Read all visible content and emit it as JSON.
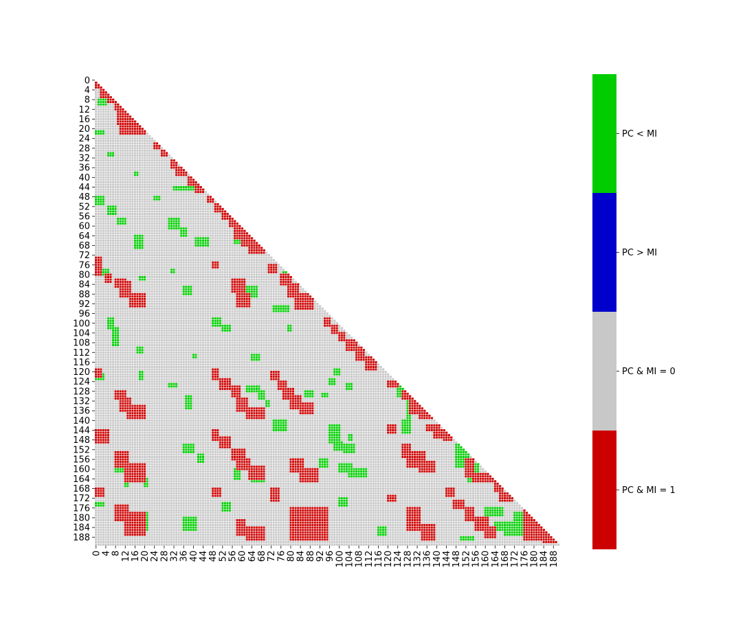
{
  "chart_data": {
    "type": "heatmap",
    "matrix_size": 192,
    "mask": "upper-triangle",
    "title": "",
    "xlabel": "",
    "ylabel": "",
    "tick_step": 4,
    "x_tick_labels": [
      "0",
      "4",
      "8",
      "12",
      "16",
      "20",
      "24",
      "28",
      "32",
      "36",
      "40",
      "44",
      "48",
      "52",
      "56",
      "60",
      "64",
      "68",
      "72",
      "76",
      "80",
      "84",
      "88",
      "92",
      "96",
      "100",
      "104",
      "108",
      "112",
      "116",
      "120",
      "124",
      "128",
      "132",
      "136",
      "140",
      "144",
      "148",
      "152",
      "156",
      "160",
      "164",
      "168",
      "172",
      "176",
      "180",
      "184",
      "188"
    ],
    "y_tick_labels": [
      "0",
      "4",
      "8",
      "12",
      "16",
      "20",
      "24",
      "28",
      "32",
      "36",
      "40",
      "44",
      "48",
      "52",
      "56",
      "60",
      "64",
      "68",
      "72",
      "76",
      "80",
      "84",
      "88",
      "92",
      "96",
      "100",
      "104",
      "108",
      "112",
      "116",
      "120",
      "124",
      "128",
      "132",
      "136",
      "140",
      "144",
      "148",
      "152",
      "156",
      "160",
      "164",
      "168",
      "172",
      "176",
      "180",
      "184",
      "188"
    ],
    "categories": [
      {
        "code": 0,
        "label": "PC & MI = 1",
        "color": "#cc0000"
      },
      {
        "code": 1,
        "label": "PC & MI = 0",
        "color": "#c8c8c8"
      },
      {
        "code": 2,
        "label": "PC > MI",
        "color": "#0000cc"
      },
      {
        "code": 3,
        "label": "PC < MI",
        "color": "#00cc00"
      }
    ],
    "grid_line_color": "#ffffff",
    "default_code": 1,
    "red_blocks": [
      [
        1,
        4,
        0,
        3
      ],
      [
        4,
        8,
        2,
        6
      ],
      [
        7,
        10,
        5,
        9
      ],
      [
        10,
        13,
        8,
        12
      ],
      [
        13,
        19,
        9,
        15
      ],
      [
        16,
        23,
        10,
        18
      ],
      [
        19,
        23,
        14,
        21
      ],
      [
        26,
        29,
        24,
        27
      ],
      [
        29,
        32,
        27,
        30
      ],
      [
        33,
        37,
        31,
        34
      ],
      [
        36,
        40,
        33,
        38
      ],
      [
        40,
        44,
        38,
        42
      ],
      [
        43,
        47,
        41,
        45
      ],
      [
        48,
        51,
        46,
        49
      ],
      [
        51,
        55,
        49,
        53
      ],
      [
        54,
        58,
        52,
        56
      ],
      [
        57,
        61,
        55,
        59
      ],
      [
        60,
        66,
        57,
        63
      ],
      [
        63,
        69,
        60,
        67
      ],
      [
        66,
        72,
        63,
        70
      ],
      [
        73,
        77,
        0,
        3
      ],
      [
        77,
        81,
        0,
        3
      ],
      [
        75,
        78,
        48,
        51
      ],
      [
        80,
        84,
        4,
        7
      ],
      [
        82,
        86,
        8,
        13
      ],
      [
        83,
        90,
        10,
        15
      ],
      [
        88,
        94,
        14,
        21
      ],
      [
        82,
        88,
        56,
        62
      ],
      [
        88,
        94,
        58,
        64
      ],
      [
        76,
        80,
        71,
        75
      ],
      [
        80,
        85,
        76,
        81
      ],
      [
        84,
        90,
        79,
        84
      ],
      [
        88,
        95,
        82,
        90
      ],
      [
        98,
        102,
        94,
        97
      ],
      [
        101,
        105,
        97,
        100
      ],
      [
        104,
        108,
        100,
        103
      ],
      [
        107,
        112,
        103,
        108
      ],
      [
        110,
        116,
        107,
        111
      ],
      [
        114,
        120,
        111,
        116
      ],
      [
        119,
        123,
        0,
        3
      ],
      [
        119,
        124,
        48,
        51
      ],
      [
        123,
        128,
        51,
        56
      ],
      [
        126,
        131,
        56,
        60
      ],
      [
        120,
        124,
        72,
        76
      ],
      [
        124,
        128,
        75,
        79
      ],
      [
        127,
        132,
        77,
        82
      ],
      [
        130,
        136,
        80,
        85
      ],
      [
        133,
        138,
        84,
        90
      ],
      [
        128,
        132,
        8,
        13
      ],
      [
        131,
        137,
        10,
        15
      ],
      [
        134,
        140,
        13,
        21
      ],
      [
        131,
        137,
        58,
        63
      ],
      [
        135,
        140,
        62,
        70
      ],
      [
        124,
        127,
        120,
        125
      ],
      [
        128,
        132,
        126,
        130
      ],
      [
        131,
        138,
        129,
        135
      ],
      [
        136,
        140,
        133,
        140
      ],
      [
        142,
        145,
        136,
        142
      ],
      [
        144,
        148,
        139,
        145
      ],
      [
        146,
        149,
        143,
        147
      ],
      [
        144,
        150,
        0,
        6
      ],
      [
        144,
        149,
        48,
        51
      ],
      [
        147,
        152,
        51,
        56
      ],
      [
        152,
        157,
        56,
        62
      ],
      [
        156,
        161,
        58,
        64
      ],
      [
        159,
        165,
        63,
        70
      ],
      [
        153,
        160,
        8,
        14
      ],
      [
        158,
        166,
        12,
        21
      ],
      [
        156,
        162,
        80,
        86
      ],
      [
        160,
        166,
        84,
        92
      ],
      [
        142,
        146,
        120,
        124
      ],
      [
        150,
        156,
        126,
        130
      ],
      [
        153,
        160,
        128,
        136
      ],
      [
        157,
        162,
        133,
        140
      ],
      [
        156,
        164,
        152,
        156
      ],
      [
        162,
        166,
        155,
        166
      ],
      [
        166,
        170,
        164,
        168
      ],
      [
        170,
        174,
        166,
        172
      ],
      [
        168,
        172,
        0,
        4
      ],
      [
        168,
        172,
        48,
        52
      ],
      [
        168,
        174,
        72,
        76
      ],
      [
        171,
        174,
        120,
        124
      ],
      [
        168,
        172,
        144,
        148
      ],
      [
        173,
        177,
        147,
        152
      ],
      [
        176,
        182,
        152,
        156
      ],
      [
        175,
        182,
        8,
        14
      ],
      [
        178,
        188,
        12,
        21
      ],
      [
        181,
        188,
        58,
        62
      ],
      [
        184,
        190,
        62,
        70
      ],
      [
        176,
        190,
        80,
        96
      ],
      [
        176,
        186,
        128,
        134
      ],
      [
        183,
        190,
        134,
        140
      ],
      [
        180,
        186,
        156,
        162
      ],
      [
        184,
        189,
        160,
        165
      ],
      [
        176,
        190,
        176,
        184
      ],
      [
        180,
        191,
        184,
        191
      ]
    ],
    "green_blocks": [
      [
        8,
        11,
        1,
        5
      ],
      [
        21,
        23,
        0,
        4
      ],
      [
        12,
        14,
        14,
        20
      ],
      [
        30,
        32,
        5,
        8
      ],
      [
        38,
        40,
        16,
        18
      ],
      [
        44,
        46,
        32,
        42
      ],
      [
        48,
        52,
        0,
        4
      ],
      [
        48,
        50,
        24,
        27
      ],
      [
        52,
        56,
        5,
        9
      ],
      [
        57,
        60,
        9,
        13
      ],
      [
        57,
        62,
        30,
        35
      ],
      [
        61,
        65,
        35,
        38
      ],
      [
        65,
        69,
        41,
        47
      ],
      [
        62,
        68,
        57,
        63
      ],
      [
        64,
        70,
        16,
        20
      ],
      [
        78,
        81,
        0,
        6
      ],
      [
        78,
        80,
        31,
        33
      ],
      [
        85,
        89,
        36,
        40
      ],
      [
        81,
        83,
        18,
        21
      ],
      [
        85,
        90,
        61,
        67
      ],
      [
        93,
        96,
        73,
        80
      ],
      [
        79,
        82,
        77,
        81
      ],
      [
        98,
        103,
        5,
        8
      ],
      [
        98,
        102,
        48,
        52
      ],
      [
        101,
        104,
        52,
        56
      ],
      [
        101,
        104,
        79,
        81
      ],
      [
        102,
        110,
        7,
        10
      ],
      [
        110,
        113,
        17,
        20
      ],
      [
        113,
        115,
        40,
        42
      ],
      [
        113,
        116,
        64,
        68
      ],
      [
        119,
        122,
        98,
        101
      ],
      [
        121,
        124,
        0,
        4
      ],
      [
        123,
        126,
        96,
        99
      ],
      [
        125,
        128,
        103,
        106
      ],
      [
        120,
        124,
        18,
        20
      ],
      [
        125,
        127,
        30,
        34
      ],
      [
        126,
        129,
        62,
        68
      ],
      [
        128,
        132,
        67,
        70
      ],
      [
        132,
        135,
        70,
        72
      ],
      [
        128,
        131,
        86,
        90
      ],
      [
        129,
        131,
        93,
        96
      ],
      [
        126,
        131,
        124,
        130
      ],
      [
        130,
        140,
        128,
        130
      ],
      [
        130,
        136,
        37,
        40
      ],
      [
        140,
        145,
        73,
        79
      ],
      [
        140,
        146,
        126,
        130
      ],
      [
        142,
        150,
        96,
        101
      ],
      [
        149,
        153,
        98,
        102
      ],
      [
        150,
        154,
        102,
        107
      ],
      [
        146,
        149,
        104,
        106
      ],
      [
        150,
        154,
        36,
        41
      ],
      [
        154,
        158,
        42,
        45
      ],
      [
        160,
        165,
        57,
        60
      ],
      [
        162,
        166,
        64,
        70
      ],
      [
        156,
        160,
        92,
        96
      ],
      [
        158,
        162,
        100,
        106
      ],
      [
        160,
        164,
        104,
        112
      ],
      [
        156,
        162,
        8,
        12
      ],
      [
        162,
        168,
        12,
        14
      ],
      [
        164,
        168,
        20,
        22
      ],
      [
        150,
        160,
        148,
        154
      ],
      [
        158,
        166,
        153,
        158
      ],
      [
        160,
        164,
        166,
        170
      ],
      [
        174,
        176,
        0,
        4
      ],
      [
        172,
        176,
        100,
        104
      ],
      [
        174,
        178,
        52,
        56
      ],
      [
        178,
        186,
        18,
        22
      ],
      [
        180,
        186,
        36,
        42
      ],
      [
        184,
        188,
        116,
        120
      ],
      [
        176,
        180,
        160,
        168
      ],
      [
        182,
        186,
        164,
        170
      ],
      [
        178,
        182,
        172,
        176
      ],
      [
        182,
        188,
        168,
        176
      ],
      [
        188,
        190,
        150,
        156
      ]
    ]
  }
}
